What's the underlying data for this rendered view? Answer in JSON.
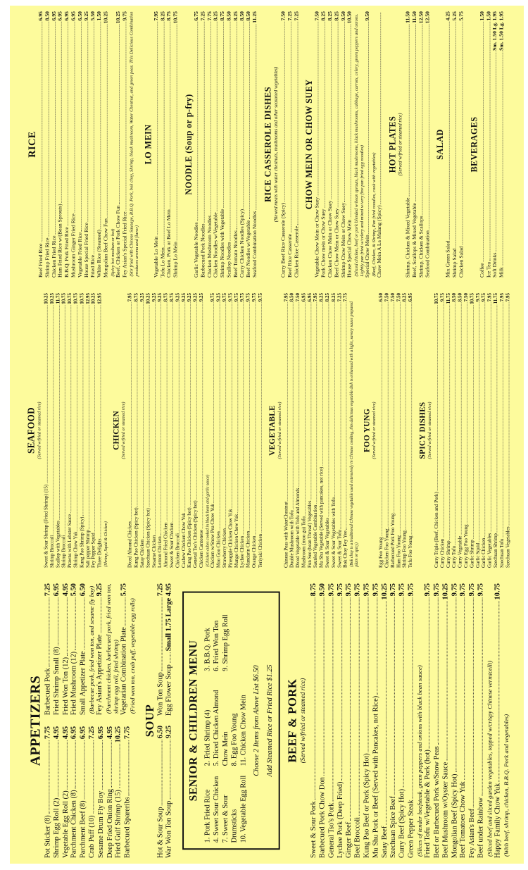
{
  "appetizers": {
    "title": "APPETIZERS",
    "left": [
      {
        "name": "Pot Sticker (8)",
        "price": "7.75"
      },
      {
        "name": "Shrimp Egg Roll (2)",
        "price": "4.95"
      },
      {
        "name": "Vegetable Egg Roll (2)",
        "price": "4.95"
      },
      {
        "name": "Parchment Chicken (8)",
        "price": "6.95"
      },
      {
        "name": "Parchment Beef (8)",
        "price": "6.95"
      },
      {
        "name": "Crab Puff (10)",
        "price": "7.25"
      },
      {
        "name": "Sesame Drum Fly Boy",
        "price": "6.95"
      },
      {
        "name": "Deep Fried Onion Ring",
        "price": "4.95"
      },
      {
        "name": "Fried Gulf Shrimp (15)",
        "price": "10.25"
      },
      {
        "name": "Barbecued Spareribs",
        "price": "7.75"
      }
    ],
    "right": [
      {
        "name": "Barbecued Pork",
        "price": "7.25"
      },
      {
        "name": "Fried Shrimp Small (8)",
        "price": "6.95"
      },
      {
        "name": "Fried Won Ton (12)",
        "price": "4.95"
      },
      {
        "name": "Fried Mushroom (12)",
        "price": "5.50"
      },
      {
        "name": "Small Appetizer Plate",
        "price": "6.50",
        "sub": "(Barbecue pork, fried won ton, and sesame fly boy)"
      },
      {
        "name": "Fey Asian's Appetizer Plate",
        "price": "9.25",
        "sub": "(Parchment chicken, barbecued pork, fried won ton, shrimp egg roll, fried shrimp)"
      },
      {
        "name": "Vegetarian Combination Plate",
        "price": "5.75",
        "sub": "(Fried won ton, crab puff, vegetable egg rolls)"
      }
    ]
  },
  "soup": {
    "title": "SOUP",
    "left": [
      {
        "name": "Hot & Sour Soup",
        "price": "6.50"
      },
      {
        "name": "War Won Ton Soup",
        "price": "9.25"
      }
    ],
    "right": [
      {
        "name": "Won Ton Soup",
        "price": "7.25"
      },
      {
        "name": "Egg Flower Soup",
        "price": "Small 1.75  Large 4.95"
      }
    ]
  },
  "senior": {
    "title": "SENIOR & CHILDREN MENU",
    "col1": [
      "1. Pork Fried Rice",
      "4. Sweet Sour Chicken",
      "7. Sweet & Sour Drumsticks",
      "10. Vegetable Egg Roll"
    ],
    "col2": [
      "2. Fried Shrimp (4)",
      "5. Diced Chicken Almond Chow Mein",
      "8. Egg Foo Young",
      "11. Chicken Chow Mein"
    ],
    "col3": [
      "3. B.B.Q. Pork",
      "6. Fried Won Ton",
      "9. Shrimp Egg Roll"
    ],
    "choose": "Choose 2 Items from Above List $6.50",
    "add": "Add Steamed Rice or Fried Rice $1.25"
  },
  "beef": {
    "title": "BEEF & PORK",
    "note": "(Served w/fried or steamed rice)",
    "items": [
      {
        "name": "Sweet & Sour Pork",
        "price": "8.75"
      },
      {
        "name": "Barbecued Pork Chow Don",
        "price": "9.50"
      },
      {
        "name": "General Tso's Pork",
        "price": "9.75"
      },
      {
        "name": "Lychee Pork (Deep Fried)",
        "price": "9.75"
      },
      {
        "name": "Ginger Beef",
        "price": "9.75"
      },
      {
        "name": "Beef Broccoli",
        "price": "9.75"
      },
      {
        "name": "Kung Pao Beef or Pork (Spicy Hot)",
        "price": "9.75"
      },
      {
        "name": "Mu Shu Pork or Beef (Served with Pancakes, not Rice)",
        "price": "9.75"
      },
      {
        "name": "Satay Beef",
        "price": "10.25"
      },
      {
        "name": "Szechuan Spice Beef",
        "price": "9.75"
      },
      {
        "name": "Curry Beef (Spicy Hot)",
        "price": "9.75"
      },
      {
        "name": "Green Pepper Steak",
        "price": "9.75",
        "sub": "(Slices of tender beefsteak, green peppers and onions with black bean sauce)"
      },
      {
        "name": "Fried Tofu w/Vegetable & Pork (hot)",
        "price": "9.75"
      },
      {
        "name": "Beef or Barbecued Pork w/Snow Peas",
        "price": "9.75"
      },
      {
        "name": "Beef Mushroom w/Oyster Sauce",
        "price": "10.25"
      },
      {
        "name": "Mongolian Beef (Spicy Hot)",
        "price": "9.75"
      },
      {
        "name": "Beef Tomatoes Chow Yuk",
        "price": "9.75"
      },
      {
        "name": "Fey Asian's Beef",
        "price": "9.75"
      },
      {
        "name": "Beef under Rainbow",
        "price": "9.75",
        "sub": "(Sliced beef and sliced garden vegetables, topped w/crispy Chinese vermicelli)"
      },
      {
        "name": "Happy Family Chow Yuk",
        "price": "10.75",
        "sub": "(With beef, shrimp, chicken, B.B.Q. Pork and vegetables)"
      }
    ]
  },
  "seafood": {
    "title": "SEAFOOD",
    "note": "(Served w/fried or steamed rice)",
    "items": [
      {
        "name": "Sweet & Sour Shrimp (Fried Shrimp) (15)",
        "price": "10.25"
      },
      {
        "name": "Shrimp Broccoli",
        "price": "10.25"
      },
      {
        "name": "Scallop with Vegetables",
        "price": "11.75"
      },
      {
        "name": "Shrimp Broccoli",
        "price": "10.75"
      },
      {
        "name": "Prawns with Lobster Sauce",
        "price": "10.75"
      },
      {
        "name": "Shrimp Chow Yuk",
        "price": "10.75"
      },
      {
        "name": "Kung Pao Shrimp (Spicy)",
        "price": "10.75"
      },
      {
        "name": "Salt pepper Shrimp",
        "price": "12.95"
      },
      {
        "name": "Fey Pepper Squid",
        "price": "10.25"
      },
      {
        "name": "Three Delights",
        "price": "12.95",
        "sub": "(Shrimp, Squid & Chicken)"
      }
    ]
  },
  "chicken": {
    "title": "CHICKEN",
    "note": "(Served w/fried or steamed rice)",
    "items": [
      {
        "name": "Diced Almond Chicken",
        "price": "7.95"
      },
      {
        "name": "Kung Pao Chicken (Spicy hot)",
        "price": "8.75"
      },
      {
        "name": "Satay Chicken",
        "price": "9.25"
      },
      {
        "name": "Szechuan Chicken (Spicy hot)",
        "price": "10.25"
      },
      {
        "name": "Sesame Chicken",
        "price": "9.25"
      },
      {
        "name": "Lemon Chicken",
        "price": "9.25"
      },
      {
        "name": "Almond Fried Chicken",
        "price": "8.75"
      },
      {
        "name": "Sweet & Sour Chicken",
        "price": "8.75"
      },
      {
        "name": "Chicken Broccoli",
        "price": "9.25"
      },
      {
        "name": "Cashew Chicken Chow Yuk",
        "price": "9.25"
      },
      {
        "name": "Kung Pao Chicken (Spicy hot)",
        "price": "9.25"
      },
      {
        "name": "General Tso's Chicken (Spicy hot)",
        "price": "9.25"
      },
      {
        "name": "Chicken Cantonese",
        "price": "9.25",
        "sub": "(Chicken cubes cooked in black bean and garlic sauce)"
      },
      {
        "name": "Chicken w/Snow Pea Chow Yuk",
        "price": "9.75"
      },
      {
        "name": "Moo Goo Chicken",
        "price": "9.25"
      },
      {
        "name": "Strawberry Chicken",
        "price": "9.75"
      },
      {
        "name": "Pineapple Chicken Chow Yuk",
        "price": "9.75"
      },
      {
        "name": "Mungo Chicken Chow Yuk",
        "price": "9.75"
      },
      {
        "name": "Lychee Chicken",
        "price": "9.75"
      },
      {
        "name": "Mandarin Chicken",
        "price": "9.75"
      },
      {
        "name": "Orange Chicken",
        "price": "9.75"
      },
      {
        "name": "Teriyaki Chicken",
        "price": "9.75"
      }
    ]
  },
  "vegetable": {
    "title": "VEGETABLE",
    "note": "(Served w/fried or steamed rice)",
    "items": [
      {
        "name": "Chinese Peas with WaterChestnut",
        "price": "7.95"
      },
      {
        "name": "Double Mushroom with Tofu",
        "price": "8.50"
      },
      {
        "name": "Diced Vegetable with Tofu and Almonds",
        "price": "7.50"
      },
      {
        "name": "Mushroom (moo gu) Tofu",
        "price": "6.95"
      },
      {
        "name": "Fun See (bean Thread) Vegetables",
        "price": "6.95"
      },
      {
        "name": "Sautéed Vegetable Combination",
        "price": "7.95"
      },
      {
        "name": "Mu Shu Vegetable (Served with pancakes, not rice)",
        "price": "8.25"
      },
      {
        "name": "Sweet & Sour Vegetables",
        "price": "8.25"
      },
      {
        "name": "Sweet & Sour Vegetables with Tofu",
        "price": "8.25"
      },
      {
        "name": "Sweet & Sour Tofu",
        "price": "7.25"
      },
      {
        "name": "Bok Choy Fey Yee",
        "price": "7.75",
        "sub": "(Bok choy is a traditional Chinese vegetable used extensively in Chinese cooking, this delicious vegetable dish is enhanced with a light, savory sauce prepared plain or spicy)"
      }
    ]
  },
  "fooyoung": {
    "title": "FOO YUNG",
    "note": "(Served w/fried or steamed rice)",
    "items": [
      {
        "name": "Egg Foo Young",
        "price": "6.50"
      },
      {
        "name": "Chicken Foo Young",
        "price": "7.50"
      },
      {
        "name": "Barbecued Pork Foo Young",
        "price": "7.50"
      },
      {
        "name": "Ham Foo Young",
        "price": "7.50"
      },
      {
        "name": "Shrimp Foo Young",
        "price": "8.25"
      },
      {
        "name": "Tofu Foo Young",
        "price": "6.95"
      }
    ]
  },
  "spicy": {
    "title": "SPICY DISHES",
    "note": "(Served w/fried or steamed rice)",
    "items": [
      {
        "name": "Curry Triple (Beef, Chicken and Pork)",
        "price": "10.75"
      },
      {
        "name": "Curry Chicken",
        "price": "9.75"
      },
      {
        "name": "Curry Shrimp",
        "price": "11.75"
      },
      {
        "name": "Curry Tofu",
        "price": "8.50"
      },
      {
        "name": "Curry Vegetable",
        "price": "8.50"
      },
      {
        "name": "Curry Egg Foo Young",
        "price": "7.50"
      },
      {
        "name": "Garlic Shrimp",
        "price": "10.75"
      },
      {
        "name": "Garlic Squid",
        "price": "9.75"
      },
      {
        "name": "Garlic Chicken",
        "price": "9.75"
      },
      {
        "name": "Garlic Vegetables",
        "price": "7.95"
      },
      {
        "name": "Szechuan Shrimp",
        "price": "11.75"
      },
      {
        "name": "Szechuan Tofu",
        "price": "7.95"
      },
      {
        "name": "Szechuan Vegetables",
        "price": "7.95"
      }
    ]
  },
  "rice": {
    "title": "RICE",
    "items": [
      {
        "name": "Beef Fried Rice",
        "price": "6.95"
      },
      {
        "name": "Shrimp Fried Rice",
        "price": "8.50"
      },
      {
        "name": "Chicken Fried Rice",
        "price": "6.95"
      },
      {
        "name": "Ham Fried Rice w/(Bean Sprouts)",
        "price": "6.95"
      },
      {
        "name": "B.B.Q. Pork Fried Rice",
        "price": "6.95"
      },
      {
        "name": "Mushroom Ginger Fried Rice",
        "price": "6.95"
      },
      {
        "name": "Vegetable Fried Rice",
        "price": "6.50"
      },
      {
        "name": "House Special Fried Rice",
        "price": "9.25"
      },
      {
        "name": "Fried Rice",
        "price": "5.50"
      },
      {
        "name": "White Rice (Steamed)",
        "price": "1.50"
      },
      {
        "name": "Mongolian Beef Chow Fun",
        "price": "10.25",
        "sub": "(Spicy hot medium or hot)"
      },
      {
        "name": "Beef, Chicken or Pork Chow Fun",
        "price": "10.25"
      },
      {
        "name": "Fey Asian's Special Fried Rice",
        "price": "9.75",
        "sub": "(Stir fried with Chinese Sausage, B.B.Q. Pork, bok choy, Shrimp, black mushroom, Water Chestnut, and green peas. This Delicious Combination produces aroma and flavor)"
      }
    ]
  },
  "lomein": {
    "title": "LO MEIN",
    "items": [
      {
        "name": "Vegetable Lo Mein",
        "price": "7.95"
      },
      {
        "name": "Tofu Lo Mein",
        "price": "8.25"
      },
      {
        "name": "Chicken, Pork or Beef Lo Mein",
        "price": "8.75"
      },
      {
        "name": "Shrimp Lo Mein",
        "price": "10.75"
      }
    ]
  },
  "noodle": {
    "title": "NOODLE (Soup or p-fry)",
    "items": [
      {
        "name": "Garlic Vegetable Noodles",
        "price": "6.75"
      },
      {
        "name": "Barbecued Pork Noodles",
        "price": "7.25"
      },
      {
        "name": "Chicken Mushroom Noodles",
        "price": "7.75"
      },
      {
        "name": "Chicken Noodles w/Vegetable",
        "price": "8.25"
      },
      {
        "name": "Shrimp Noodles with Vegetable",
        "price": "8.75"
      },
      {
        "name": "Scallop Noodles",
        "price": "8.50"
      },
      {
        "name": "Beef Tomato Noodles",
        "price": "8.25"
      },
      {
        "name": "Curry Chicken Noodles (Spicy)",
        "price": "8.50"
      },
      {
        "name": "Beef Noodles w/Vegetable",
        "price": "8.50"
      },
      {
        "name": "Seafood Combination Noodles",
        "price": "11.25"
      }
    ]
  },
  "casserole": {
    "title": "RICE CASSEROLE DISHES",
    "note": "(Stewed meats with water chestnuts, mushrooms and other seasoned vegetables)",
    "items": [
      {
        "name": "Curry Beef Rice Casserole (Spicy)",
        "price": "7.50"
      },
      {
        "name": "Beef Rice Casserole",
        "price": "7.25"
      },
      {
        "name": "Chicken Rice Casserole",
        "price": "7.25"
      }
    ]
  },
  "chowmein": {
    "title": "CHOW MEIN OR CHOW SUEY",
    "items": [
      {
        "name": "Vegetable Chow Mein or Chow Suey",
        "price": "7.50"
      },
      {
        "name": "Pork Chow mein or Chow Suey",
        "price": "8.25"
      },
      {
        "name": "Chicken Chow Mein or Chow Suey",
        "price": "8.25"
      },
      {
        "name": "Beef Chow Mein or Chow Suey",
        "price": "8.25"
      },
      {
        "name": "Shrimp Chow Mein or Chow Suey",
        "price": "9.50"
      },
      {
        "name": "House Special Chow Mein",
        "price": "10.50",
        "sub": "(Sliced chicken, beef or pork blended w/bean sprouts, black mushrooms, black mushrooms, cabbage, carrots, celery, green peppers and onions. Lightly pan fried w/celery and mixed w/very fine pan fried egg noodles)"
      },
      {
        "name": "Special Chow Mein",
        "price": "9.50",
        "sub": "(Beef, Chicken, & Shrimp, Pan fried noodles, cook with vegetables)"
      },
      {
        "name": "Chow Mein A La Malang (Spicy)",
        "price": ""
      }
    ]
  },
  "hotplates": {
    "title": "HOT PLATES",
    "note": "(Served w/fried or steamed rice)",
    "items": [
      {
        "name": "Shrimp, Chicken & Mixed Vegetable",
        "price": "11.50"
      },
      {
        "name": "Beef, Scallops & Mixed Vegetable",
        "price": "11.50"
      },
      {
        "name": "Shrimp, Chicken & Scallops",
        "price": "12.50"
      },
      {
        "name": "Seafood Combination",
        "price": "12.50"
      }
    ]
  },
  "salad": {
    "title": "SALAD",
    "items": [
      {
        "name": "Mix Green Salad",
        "price": "4.25"
      },
      {
        "name": "Shrimp Salad",
        "price": "5.25"
      },
      {
        "name": "Chicken Salad",
        "price": "5.75"
      }
    ]
  },
  "beverages": {
    "title": "BEVERAGES",
    "items": [
      {
        "name": "Coffee",
        "price": "1.50"
      },
      {
        "name": "Ice Tea",
        "price": "1.50"
      },
      {
        "name": "Soft Drinks",
        "price": "Sm. 1.50  Lg. 1.95"
      },
      {
        "name": "Milk",
        "price": "Sm. 1.50  Lg. 1.95"
      }
    ]
  }
}
